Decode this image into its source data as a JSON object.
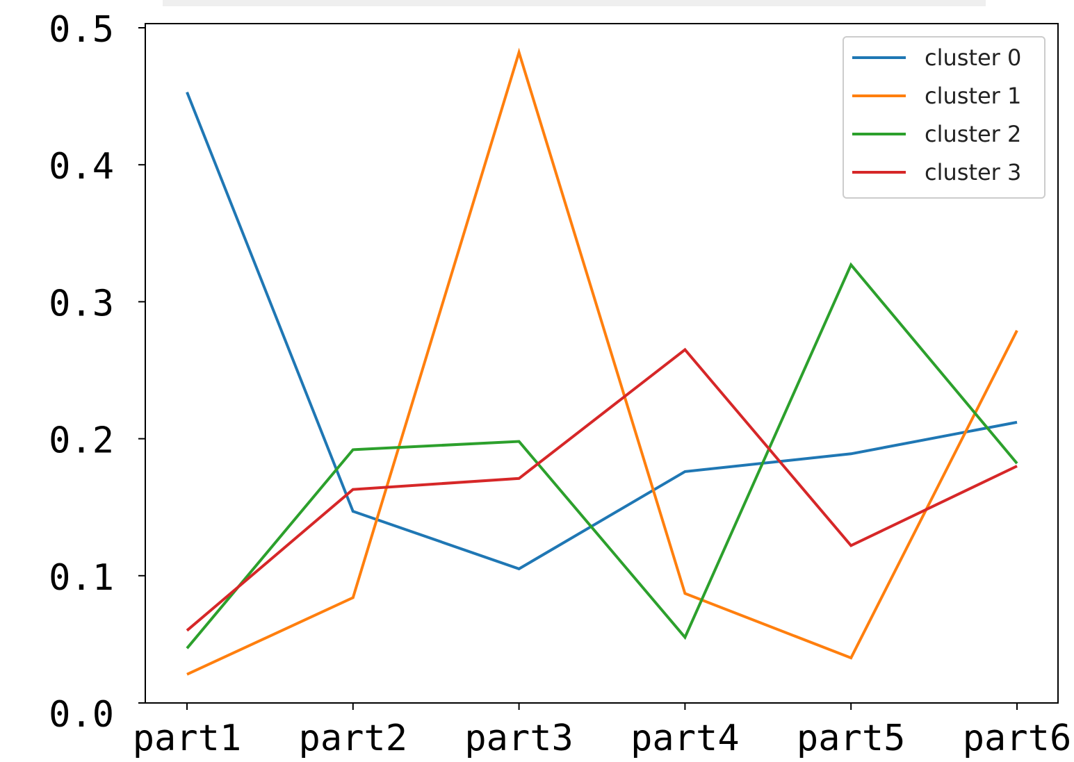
{
  "chart_data": {
    "type": "line",
    "title": "",
    "xlabel": "",
    "ylabel": "",
    "categories": [
      "part1",
      "part2",
      "part3",
      "part4",
      "part5",
      "part6"
    ],
    "ylim": [
      0.0,
      0.5
    ],
    "yticks": [
      "0.0",
      "0.1",
      "0.2",
      "0.3",
      "0.4",
      "0.5"
    ],
    "grid": false,
    "legend_position": "top-right",
    "series": [
      {
        "name": "cluster 0",
        "color": "#1f77b4",
        "values": [
          0.453,
          0.147,
          0.105,
          0.176,
          0.189,
          0.212
        ]
      },
      {
        "name": "cluster 1",
        "color": "#ff7f0e",
        "values": [
          0.028,
          0.084,
          0.482,
          0.087,
          0.04,
          0.279
        ]
      },
      {
        "name": "cluster 2",
        "color": "#2ca02c",
        "values": [
          0.047,
          0.192,
          0.198,
          0.055,
          0.327,
          0.182
        ]
      },
      {
        "name": "cluster 3",
        "color": "#d62728",
        "values": [
          0.06,
          0.163,
          0.171,
          0.265,
          0.122,
          0.18
        ]
      }
    ]
  }
}
